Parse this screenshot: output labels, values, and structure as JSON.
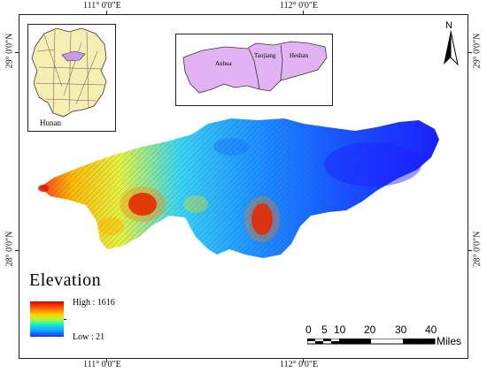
{
  "map": {
    "top_lon_labels": [
      "111° 0'0\"E",
      "112° 0'0\"E"
    ],
    "bottom_lon_labels": [
      "111° 0'0\"E",
      "112° 0'0\"E"
    ],
    "left_lat_labels": [
      "29° 0'0\"N",
      "28° 0'0\"N"
    ],
    "right_lat_labels": [
      "29° 0'0\"N",
      "28° 0'0\"N"
    ],
    "north_label": "N"
  },
  "legend": {
    "title": "Elevation",
    "high_label": "High : 1616",
    "low_label": "Low : 21",
    "high_value": 1616,
    "low_value": 21,
    "colors": [
      "#d50000",
      "#ff5a00",
      "#ffd400",
      "#9cff3a",
      "#19e6d6",
      "#12a6ff",
      "#1a2fff"
    ]
  },
  "scalebar": {
    "ticks": [
      "0",
      "5",
      "10",
      "20",
      "30",
      "40"
    ],
    "unit": "Miles"
  },
  "inset_province": {
    "label": "Hunan",
    "fill_color": "#f7eeb4",
    "highlight_color": "#d8a8f0"
  },
  "inset_counties": {
    "labels": [
      "Anhua",
      "Taojiang",
      "Heshan"
    ],
    "fill_color": "#e2b3f2"
  }
}
